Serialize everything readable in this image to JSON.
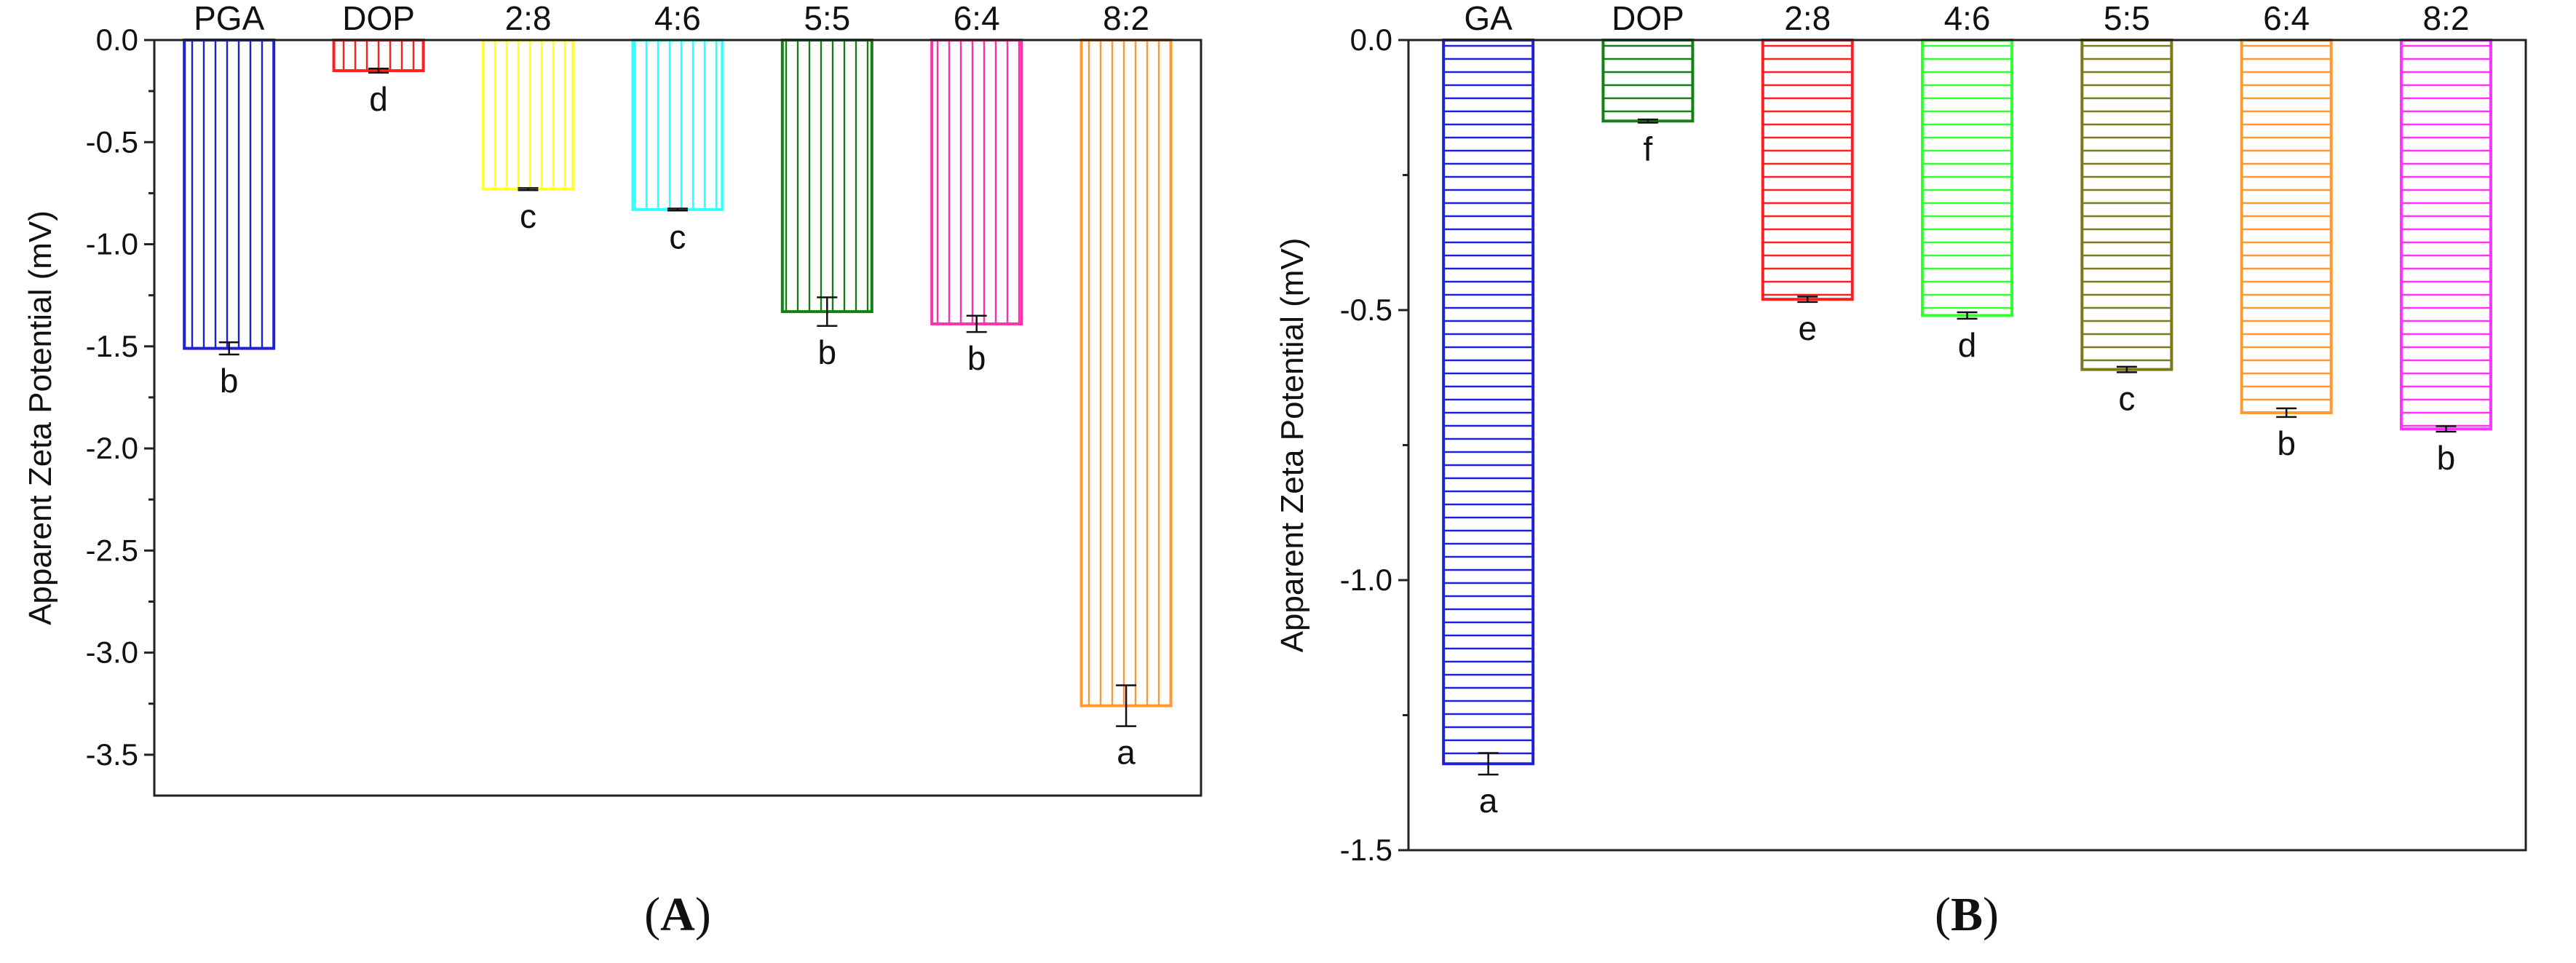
{
  "chart_data": [
    {
      "type": "bar",
      "panel": "A",
      "categories": [
        "PGA",
        "DOP",
        "2:8",
        "4:6",
        "5:5",
        "6:4",
        "8:2"
      ],
      "values": [
        -1.51,
        -0.15,
        -0.73,
        -0.83,
        -1.33,
        -1.39,
        -3.26
      ],
      "errors": [
        0.03,
        0.01,
        0.005,
        0.005,
        0.07,
        0.04,
        0.1
      ],
      "significance": [
        "b",
        "d",
        "c",
        "c",
        "b",
        "b",
        "a"
      ],
      "colors": [
        "#1f1fd6",
        "#ff1f1f",
        "#ffff33",
        "#33ffff",
        "#138013",
        "#ff33a6",
        "#ff9933"
      ],
      "hatch": "vertical",
      "title": "",
      "xlabel": "",
      "ylabel": "Apparent Zeta Potential (mV)",
      "ylim": [
        -3.7,
        0.0
      ],
      "yticks": [
        0.0,
        -0.5,
        -1.0,
        -1.5,
        -2.0,
        -2.5,
        -3.0,
        -3.5
      ],
      "ytick_labels": [
        "0.0",
        "-0.5",
        "-1.0",
        "-1.5",
        "-2.0",
        "-2.5",
        "-3.0",
        "-3.5"
      ],
      "caption_open": "(",
      "caption_letter": "A",
      "caption_close": ")"
    },
    {
      "type": "bar",
      "panel": "B",
      "categories": [
        "GA",
        "DOP",
        "2:8",
        "4:6",
        "5:5",
        "6:4",
        "8:2"
      ],
      "values": [
        -1.34,
        -0.15,
        -0.48,
        -0.51,
        -0.61,
        -0.69,
        -0.72
      ],
      "errors": [
        0.02,
        0.003,
        0.005,
        0.006,
        0.005,
        0.008,
        0.005
      ],
      "significance": [
        "a",
        "f",
        "e",
        "d",
        "c",
        "b",
        "b"
      ],
      "colors": [
        "#1f1fd6",
        "#138013",
        "#ff1f1f",
        "#33ff33",
        "#7a7a1a",
        "#ff9933",
        "#ff33ff"
      ],
      "hatch": "horizontal",
      "title": "",
      "xlabel": "",
      "ylabel": "Apparent Zeta Potential (mV)",
      "ylim": [
        -1.5,
        0.0
      ],
      "yticks": [
        0.0,
        -0.5,
        -1.0,
        -1.5
      ],
      "ytick_labels": [
        "0.0",
        "-0.5",
        "-1.0",
        "-1.5"
      ],
      "caption_open": "(",
      "caption_letter": "B",
      "caption_close": ")"
    }
  ]
}
